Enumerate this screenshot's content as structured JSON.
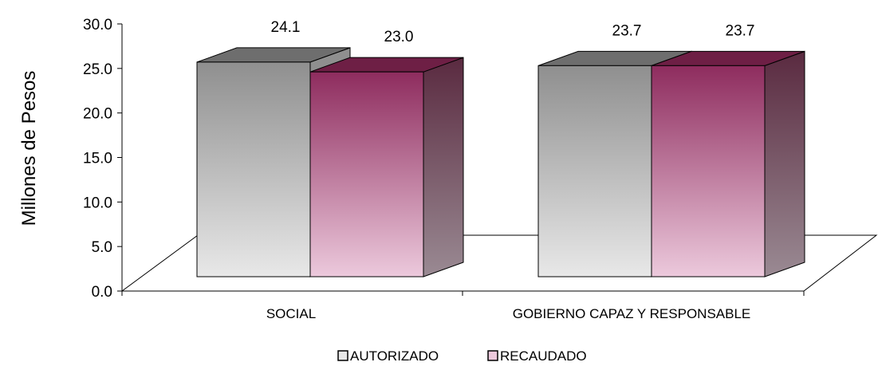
{
  "chart_data": {
    "type": "bar",
    "three_d": true,
    "ylabel": "Millones de Pesos",
    "ylim": [
      0,
      30
    ],
    "ytick_labels": [
      "0.0",
      "5.0",
      "10.0",
      "15.0",
      "20.0",
      "25.0",
      "30.0"
    ],
    "categories": [
      "SOCIAL",
      "GOBIERNO CAPAZ Y RESPONSABLE"
    ],
    "series": [
      {
        "name": "AUTORIZADO",
        "values": [
          24.1,
          23.7
        ],
        "value_labels": [
          "24.1",
          "23.7"
        ]
      },
      {
        "name": "RECAUDADO",
        "values": [
          23.0,
          23.7
        ],
        "value_labels": [
          "23.0",
          "23.7"
        ]
      }
    ],
    "legend_position": "bottom",
    "grid": false
  },
  "colors": {
    "autorizado_light": "#e8e8e8",
    "autorizado_dark": "#8f8f8f",
    "autorizado_top": "#6e6e6e",
    "recaudado_light": "#ecc9dc",
    "recaudado_dark": "#8e2c5e",
    "recaudado_top": "#6e1f45",
    "recaudado_side_light": "#9a8a93",
    "recaudado_side_dark": "#5a2a40"
  }
}
